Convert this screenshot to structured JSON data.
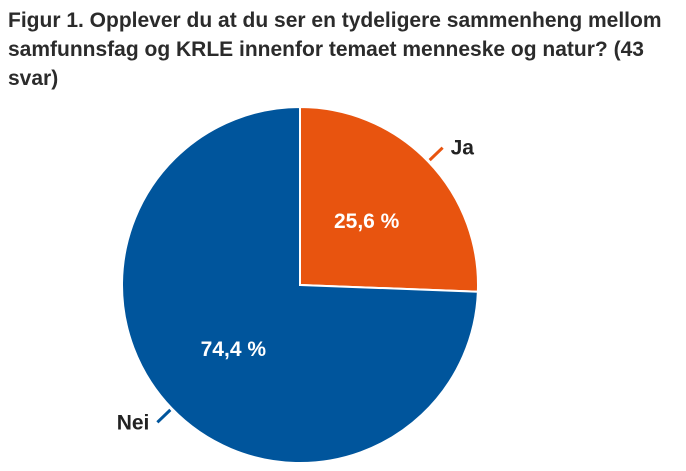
{
  "chart_data": {
    "type": "pie",
    "title": "Figur 1. Opplever du at du ser en tydeligere sammenheng mellom samfunnsfag og KRLE innenfor temaet menneske og natur? (43 svar)",
    "slices": [
      {
        "label": "Ja",
        "value": 25.6,
        "value_label": "25,6 %",
        "color": "#e8540f"
      },
      {
        "label": "Nei",
        "value": 74.4,
        "value_label": "74,4 %",
        "color": "#00559c"
      }
    ]
  }
}
